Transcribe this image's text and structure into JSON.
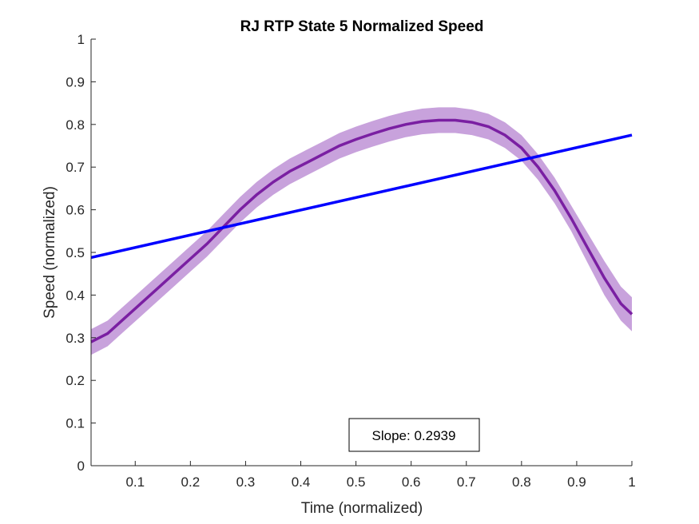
{
  "chart_data": {
    "type": "line",
    "title": "RJ  RTP State 5 Normalized Speed",
    "xlabel": "Time (normalized)",
    "ylabel": "Speed (normalized)",
    "xlim": [
      0.02,
      1.0
    ],
    "ylim": [
      0,
      1
    ],
    "xticks": [
      0.1,
      0.2,
      0.3,
      0.4,
      0.5,
      0.6,
      0.7,
      0.8,
      0.9,
      1.0
    ],
    "xtick_labels": [
      "0.1",
      "0.2",
      "0.3",
      "0.4",
      "0.5",
      "0.6",
      "0.7",
      "0.8",
      "0.9",
      "1"
    ],
    "yticks": [
      0,
      0.1,
      0.2,
      0.3,
      0.4,
      0.5,
      0.6,
      0.7,
      0.8,
      0.9,
      1
    ],
    "ytick_labels": [
      "0",
      "0.1",
      "0.2",
      "0.3",
      "0.4",
      "0.5",
      "0.6",
      "0.7",
      "0.8",
      "0.9",
      "1"
    ],
    "grid": false,
    "series": [
      {
        "type": "line",
        "color": "#7a1fa2",
        "x": [
          0.02,
          0.05,
          0.08,
          0.11,
          0.14,
          0.17,
          0.2,
          0.23,
          0.26,
          0.29,
          0.32,
          0.35,
          0.38,
          0.41,
          0.44,
          0.47,
          0.5,
          0.53,
          0.56,
          0.59,
          0.62,
          0.65,
          0.68,
          0.71,
          0.74,
          0.77,
          0.8,
          0.83,
          0.86,
          0.89,
          0.92,
          0.95,
          0.98,
          1.0
        ],
        "y": [
          0.29,
          0.31,
          0.345,
          0.38,
          0.415,
          0.45,
          0.485,
          0.52,
          0.56,
          0.6,
          0.635,
          0.665,
          0.69,
          0.71,
          0.73,
          0.75,
          0.765,
          0.778,
          0.79,
          0.8,
          0.807,
          0.81,
          0.81,
          0.805,
          0.795,
          0.775,
          0.745,
          0.7,
          0.645,
          0.58,
          0.51,
          0.44,
          0.38,
          0.355
        ]
      },
      {
        "type": "band",
        "color": "#c8a2dc",
        "lower": [
          0.26,
          0.28,
          0.315,
          0.35,
          0.385,
          0.42,
          0.455,
          0.49,
          0.53,
          0.57,
          0.605,
          0.635,
          0.66,
          0.68,
          0.7,
          0.72,
          0.735,
          0.748,
          0.76,
          0.77,
          0.777,
          0.78,
          0.78,
          0.775,
          0.765,
          0.745,
          0.715,
          0.67,
          0.615,
          0.55,
          0.475,
          0.4,
          0.34,
          0.315
        ],
        "upper": [
          0.32,
          0.34,
          0.375,
          0.41,
          0.445,
          0.48,
          0.515,
          0.55,
          0.59,
          0.63,
          0.665,
          0.695,
          0.72,
          0.74,
          0.76,
          0.78,
          0.795,
          0.808,
          0.82,
          0.83,
          0.837,
          0.84,
          0.84,
          0.835,
          0.825,
          0.805,
          0.775,
          0.73,
          0.675,
          0.61,
          0.545,
          0.48,
          0.42,
          0.395
        ]
      },
      {
        "type": "line",
        "color": "#0000ff",
        "x": [
          0.02,
          1.0
        ],
        "y": [
          0.488,
          0.775
        ]
      }
    ],
    "annotation": "Slope: 0.2939"
  }
}
